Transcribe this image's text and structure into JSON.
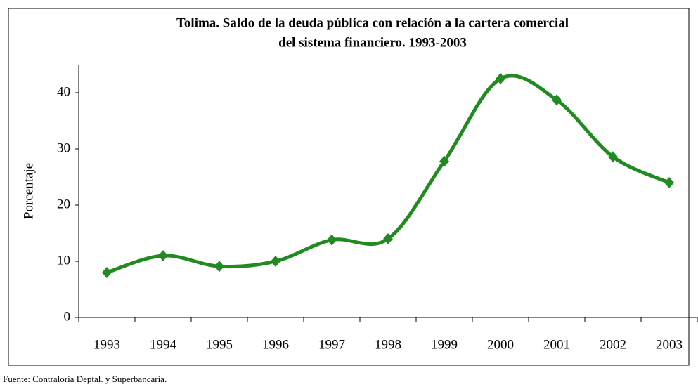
{
  "chart_data": {
    "type": "line",
    "title": [
      "Tolima. Saldo de la deuda pública con relación a la cartera comercial",
      "del sistema financiero. 1993-2003"
    ],
    "y_label": "Porcentaje",
    "source": "Fuente: Contraloría Deptal. y Superbancaria.",
    "categories": [
      "1993",
      "1994",
      "1995",
      "1996",
      "1997",
      "1998",
      "1999",
      "2000",
      "2001",
      "2002",
      "2003"
    ],
    "values": [
      8,
      11,
      9.1,
      10,
      13.8,
      14,
      27.8,
      42.5,
      38.7,
      28.6,
      24
    ],
    "color": "#218a21",
    "ylim": [
      0,
      45
    ],
    "yticks": [
      0,
      10,
      20,
      30,
      40
    ]
  }
}
